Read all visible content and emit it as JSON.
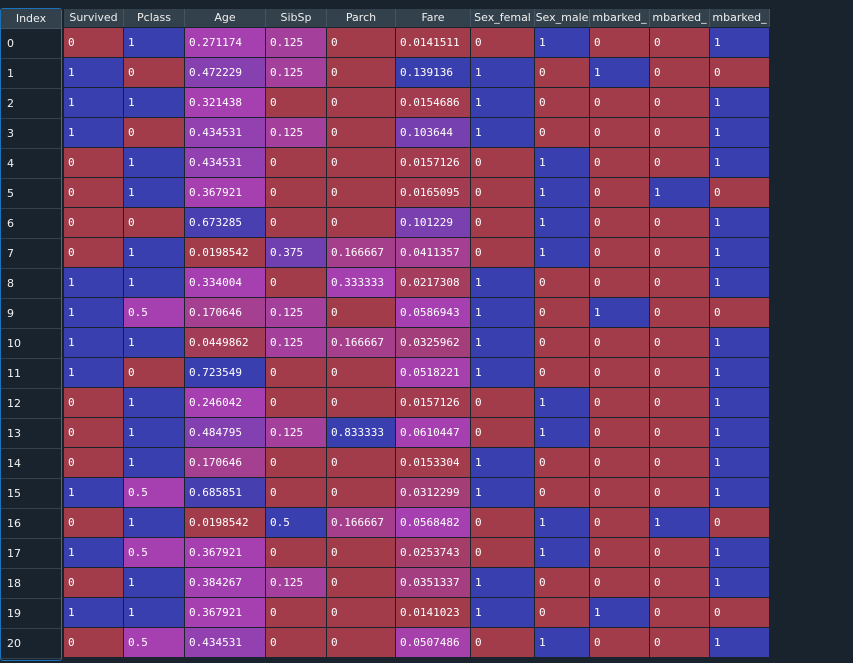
{
  "index_header": "Index",
  "columns": [
    "Survived",
    "Pclass",
    "Age",
    "SibSp",
    "Parch",
    "Fare",
    "Sex_female",
    "Sex_male",
    "Embarked_C",
    "Embarked_Q",
    "Embarked_S"
  ],
  "columns_visible_labels": [
    "Survived",
    "Pclass",
    "Age",
    "SibSp",
    "Parch",
    "Fare",
    "Sex_femal",
    "Sex_male",
    "mbarked_",
    "mbarked_",
    "mbarked_"
  ],
  "rows": [
    {
      "index": "0",
      "values": [
        "0",
        "1",
        "0.271174",
        "0.125",
        "0",
        "0.0141511",
        "0",
        "1",
        "0",
        "0",
        "1"
      ]
    },
    {
      "index": "1",
      "values": [
        "1",
        "0",
        "0.472229",
        "0.125",
        "0",
        "0.139136",
        "1",
        "0",
        "1",
        "0",
        "0"
      ]
    },
    {
      "index": "2",
      "values": [
        "1",
        "1",
        "0.321438",
        "0",
        "0",
        "0.0154686",
        "1",
        "0",
        "0",
        "0",
        "1"
      ]
    },
    {
      "index": "3",
      "values": [
        "1",
        "0",
        "0.434531",
        "0.125",
        "0",
        "0.103644",
        "1",
        "0",
        "0",
        "0",
        "1"
      ]
    },
    {
      "index": "4",
      "values": [
        "0",
        "1",
        "0.434531",
        "0",
        "0",
        "0.0157126",
        "0",
        "1",
        "0",
        "0",
        "1"
      ]
    },
    {
      "index": "5",
      "values": [
        "0",
        "1",
        "0.367921",
        "0",
        "0",
        "0.0165095",
        "0",
        "1",
        "0",
        "1",
        "0"
      ]
    },
    {
      "index": "6",
      "values": [
        "0",
        "0",
        "0.673285",
        "0",
        "0",
        "0.101229",
        "0",
        "1",
        "0",
        "0",
        "1"
      ]
    },
    {
      "index": "7",
      "values": [
        "0",
        "1",
        "0.0198542",
        "0.375",
        "0.166667",
        "0.0411357",
        "0",
        "1",
        "0",
        "0",
        "1"
      ]
    },
    {
      "index": "8",
      "values": [
        "1",
        "1",
        "0.334004",
        "0",
        "0.333333",
        "0.0217308",
        "1",
        "0",
        "0",
        "0",
        "1"
      ]
    },
    {
      "index": "9",
      "values": [
        "1",
        "0.5",
        "0.170646",
        "0.125",
        "0",
        "0.0586943",
        "1",
        "0",
        "1",
        "0",
        "0"
      ]
    },
    {
      "index": "10",
      "values": [
        "1",
        "1",
        "0.0449862",
        "0.125",
        "0.166667",
        "0.0325962",
        "1",
        "0",
        "0",
        "0",
        "1"
      ]
    },
    {
      "index": "11",
      "values": [
        "1",
        "0",
        "0.723549",
        "0",
        "0",
        "0.0518221",
        "1",
        "0",
        "0",
        "0",
        "1"
      ]
    },
    {
      "index": "12",
      "values": [
        "0",
        "1",
        "0.246042",
        "0",
        "0",
        "0.0157126",
        "0",
        "1",
        "0",
        "0",
        "1"
      ]
    },
    {
      "index": "13",
      "values": [
        "0",
        "1",
        "0.484795",
        "0.125",
        "0.833333",
        "0.0610447",
        "0",
        "1",
        "0",
        "0",
        "1"
      ]
    },
    {
      "index": "14",
      "values": [
        "0",
        "1",
        "0.170646",
        "0",
        "0",
        "0.0153304",
        "1",
        "0",
        "0",
        "0",
        "1"
      ]
    },
    {
      "index": "15",
      "values": [
        "1",
        "0.5",
        "0.685851",
        "0",
        "0",
        "0.0312299",
        "1",
        "0",
        "0",
        "0",
        "1"
      ]
    },
    {
      "index": "16",
      "values": [
        "0",
        "1",
        "0.0198542",
        "0.5",
        "0.166667",
        "0.0568482",
        "0",
        "1",
        "0",
        "1",
        "0"
      ]
    },
    {
      "index": "17",
      "values": [
        "1",
        "0.5",
        "0.367921",
        "0",
        "0",
        "0.0253743",
        "0",
        "1",
        "0",
        "0",
        "1"
      ]
    },
    {
      "index": "18",
      "values": [
        "0",
        "1",
        "0.384267",
        "0.125",
        "0",
        "0.0351337",
        "1",
        "0",
        "0",
        "0",
        "1"
      ]
    },
    {
      "index": "19",
      "values": [
        "1",
        "1",
        "0.367921",
        "0",
        "0",
        "0.0141023",
        "1",
        "0",
        "1",
        "0",
        "0"
      ]
    },
    {
      "index": "20",
      "values": [
        "0",
        "0.5",
        "0.434531",
        "0",
        "0",
        "0.0507486",
        "0",
        "1",
        "0",
        "0",
        "1"
      ]
    }
  ],
  "colors": {
    "background": "#19232d",
    "header": "#32414b",
    "selection_border": "#1a72bb",
    "cell_low": "#a33c4a",
    "cell_high": "#3a3fb0",
    "cell_mid": "#a640b0"
  }
}
